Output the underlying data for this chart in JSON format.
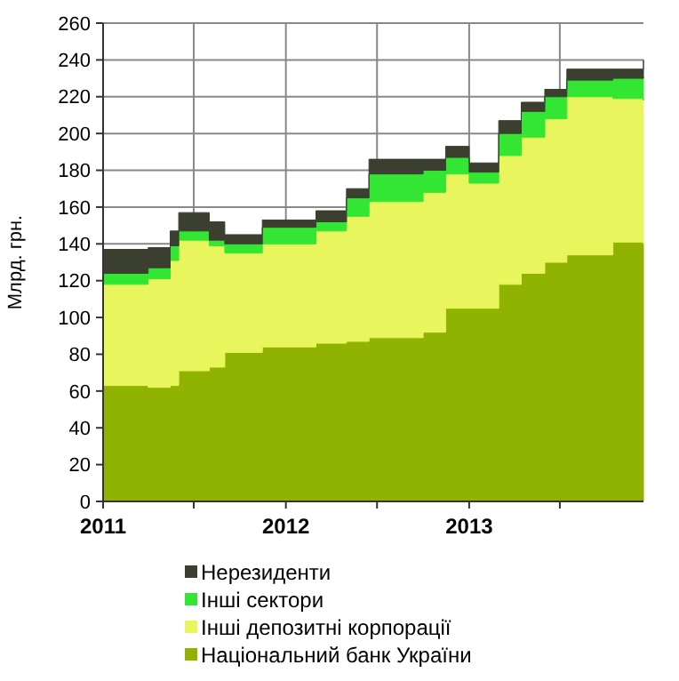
{
  "chart_data": {
    "type": "area",
    "stacked": true,
    "ylabel": "Млрд. грн.",
    "x": [
      "2011-01-01",
      "2011-04-01",
      "2011-05-15",
      "2011-06-01",
      "2011-08-01",
      "2011-09-01",
      "2011-11-15",
      "2012-03-01",
      "2012-05-01",
      "2012-06-15",
      "2012-10-01",
      "2012-11-15",
      "2013-01-01",
      "2013-03-01",
      "2013-04-15",
      "2013-06-01",
      "2013-07-15",
      "2013-10-15",
      "2013-12-15"
    ],
    "series": [
      {
        "name": "Національний банк України",
        "color": "#8fb300",
        "values": [
          63,
          62,
          63,
          71,
          73,
          81,
          84,
          86,
          87,
          89,
          92,
          105,
          105,
          118,
          124,
          130,
          134,
          141,
          140
        ]
      },
      {
        "name": "Інші депозитні корпорації",
        "color": "#e8f55c",
        "values": [
          55,
          59,
          68,
          71,
          66,
          54,
          56,
          61,
          68,
          74,
          76,
          73,
          68,
          70,
          74,
          78,
          86,
          78,
          78
        ]
      },
      {
        "name": "Інші сектори",
        "color": "#33e633",
        "values": [
          6,
          6,
          8,
          5,
          3,
          5,
          9,
          5,
          10,
          15,
          12,
          9,
          6,
          12,
          14,
          12,
          9,
          11,
          13
        ]
      },
      {
        "name": "Нерезиденти",
        "color": "#3a3f30",
        "values": [
          13,
          11,
          8,
          10,
          10,
          5,
          4,
          6,
          5,
          8,
          6,
          6,
          5,
          7,
          5,
          4,
          6,
          5,
          9
        ]
      }
    ],
    "xlim": [
      "2011-01-01",
      "2013-12-15"
    ],
    "xticks": [
      {
        "value": "2011-01-01",
        "label": "2011"
      },
      {
        "value": "2011-07-01",
        "label": null
      },
      {
        "value": "2012-01-01",
        "label": "2012"
      },
      {
        "value": "2012-07-01",
        "label": null
      },
      {
        "value": "2013-01-01",
        "label": "2013"
      },
      {
        "value": "2013-07-01",
        "label": null
      }
    ],
    "ylim": [
      0,
      260
    ],
    "yticks": [
      0,
      20,
      40,
      60,
      80,
      100,
      120,
      140,
      160,
      180,
      200,
      220,
      240,
      260
    ],
    "grid": true,
    "legend": "bottom"
  }
}
